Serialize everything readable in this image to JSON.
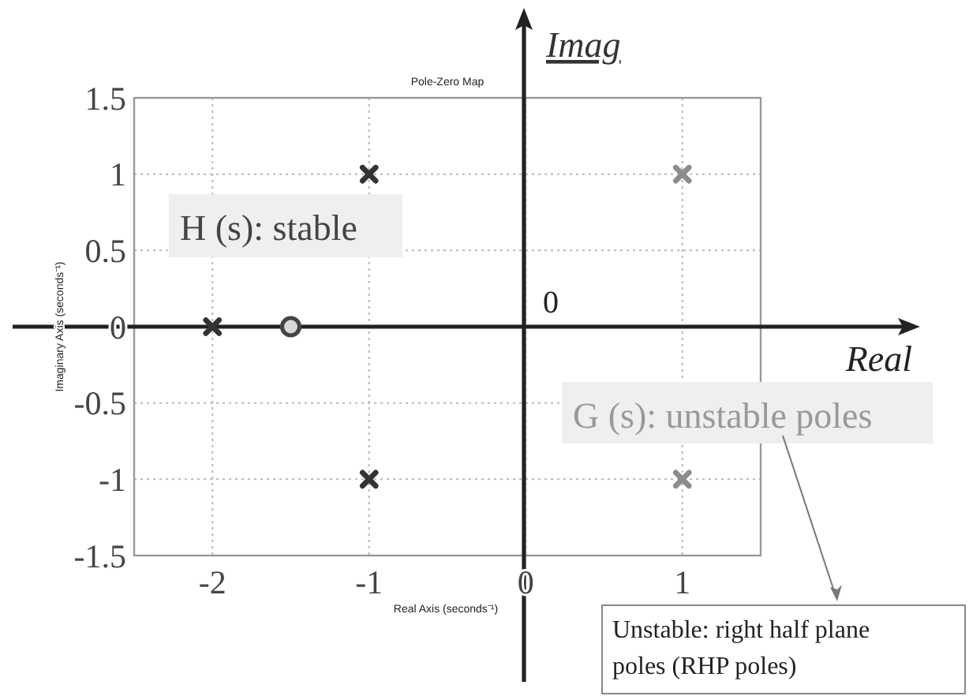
{
  "chart_data": {
    "type": "scatter",
    "title": "Pole-Zero Map",
    "xlabel": "Real Axis (seconds⁻¹)",
    "ylabel": "Imaginary Axis (seconds⁻¹)",
    "xlim": [
      -2.5,
      1.5
    ],
    "xticks": [
      -2,
      -1,
      0,
      1
    ],
    "ylim": [
      -1.5,
      1.5
    ],
    "yticks": [
      -1.5,
      -1,
      -0.5,
      0,
      0.5,
      1,
      1.5
    ],
    "grid": true,
    "series": [
      {
        "type": "scatter",
        "color": "#333333",
        "marker": "cross",
        "x": [
          -2,
          -1,
          -1
        ],
        "values": [
          0,
          1,
          -1
        ]
      },
      {
        "type": "scatter",
        "color": "#444444",
        "marker": "circle",
        "x": [
          -1.5
        ],
        "values": [
          0
        ]
      },
      {
        "type": "scatter",
        "color": "#8c8c8c",
        "marker": "cross",
        "x": [
          1,
          1
        ],
        "values": [
          1,
          -1
        ]
      }
    ],
    "annotations": [
      "Imag",
      "Real",
      "0",
      "H (s): stable",
      "G (s): unstable poles",
      "Unstable: right half plane poles (RHP poles)"
    ]
  }
}
